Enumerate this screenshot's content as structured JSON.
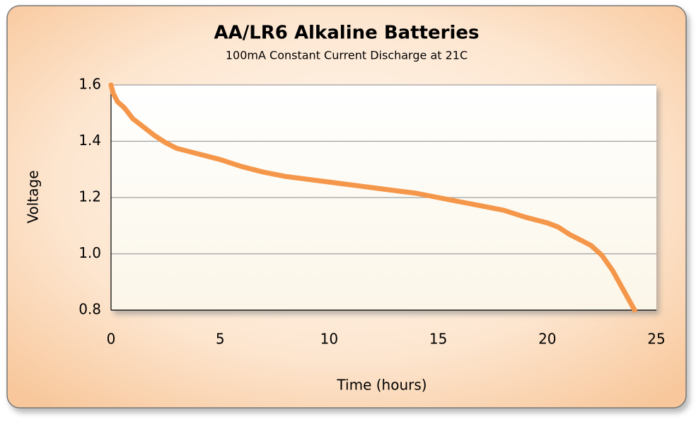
{
  "chart_data": {
    "type": "line",
    "title": "AA/LR6 Alkaline Batteries",
    "subtitle": "100mA Constant Current Discharge at 21C",
    "xlabel": "Time (hours)",
    "ylabel": "Voltage",
    "x": [
      0,
      0.1,
      0.3,
      0.6,
      1,
      1.5,
      2,
      2.5,
      3,
      4,
      5,
      6,
      7,
      8,
      9,
      10,
      11,
      12,
      13,
      14,
      15,
      16,
      17,
      18,
      19,
      20,
      20.5,
      21,
      21.5,
      22,
      22.5,
      23,
      23.5,
      24
    ],
    "series": [
      {
        "name": "Voltage",
        "color": "#f5974a",
        "values": [
          1.6,
          1.57,
          1.54,
          1.52,
          1.48,
          1.45,
          1.42,
          1.395,
          1.375,
          1.355,
          1.335,
          1.31,
          1.29,
          1.275,
          1.265,
          1.255,
          1.245,
          1.235,
          1.225,
          1.215,
          1.2,
          1.185,
          1.17,
          1.155,
          1.13,
          1.11,
          1.095,
          1.07,
          1.05,
          1.03,
          0.995,
          0.94,
          0.87,
          0.8
        ]
      }
    ],
    "xlim": [
      0,
      25
    ],
    "xticks": [
      0,
      5,
      10,
      15,
      20,
      25
    ],
    "ylim": [
      0.8,
      1.6
    ],
    "yticks": [
      0.8,
      {
        "value": 1,
        "label": "1.0"
      },
      1.2,
      1.4,
      1.6
    ],
    "grid": true
  }
}
